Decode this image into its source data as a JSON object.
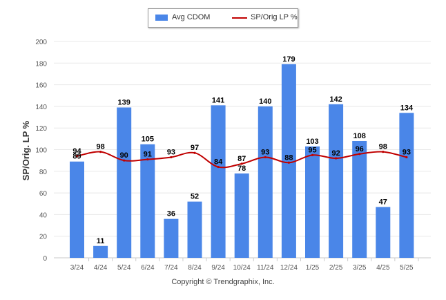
{
  "legend": {
    "bar_label": "Avg CDOM",
    "line_label": "SP/Orig LP %"
  },
  "footer": {
    "copyright": "Copyright © Trendgraphix, Inc."
  },
  "colors": {
    "bar": "#4a86e8",
    "line": "#c00000",
    "grid": "#e8e8e8"
  },
  "chart_data": {
    "type": "bar",
    "categories": [
      "3/24",
      "4/24",
      "5/24",
      "6/24",
      "7/24",
      "8/24",
      "9/24",
      "10/24",
      "11/24",
      "12/24",
      "1/25",
      "2/25",
      "3/25",
      "4/25",
      "5/25"
    ],
    "series": [
      {
        "name": "Avg CDOM",
        "type": "bar",
        "values": [
          89,
          11,
          139,
          105,
          36,
          52,
          141,
          78,
          140,
          179,
          103,
          142,
          108,
          47,
          134
        ]
      },
      {
        "name": "SP/Orig LP %",
        "type": "line",
        "values": [
          94,
          98,
          90,
          91,
          93,
          97,
          84,
          87,
          93,
          88,
          95,
          92,
          96,
          98,
          93
        ]
      }
    ],
    "ylabel": "SP/Orig. LP %",
    "ylim": [
      0,
      200
    ],
    "yticks": [
      0,
      20,
      40,
      60,
      80,
      100,
      120,
      140,
      160,
      180,
      200
    ],
    "grid": true,
    "legend_position": "top-center"
  }
}
